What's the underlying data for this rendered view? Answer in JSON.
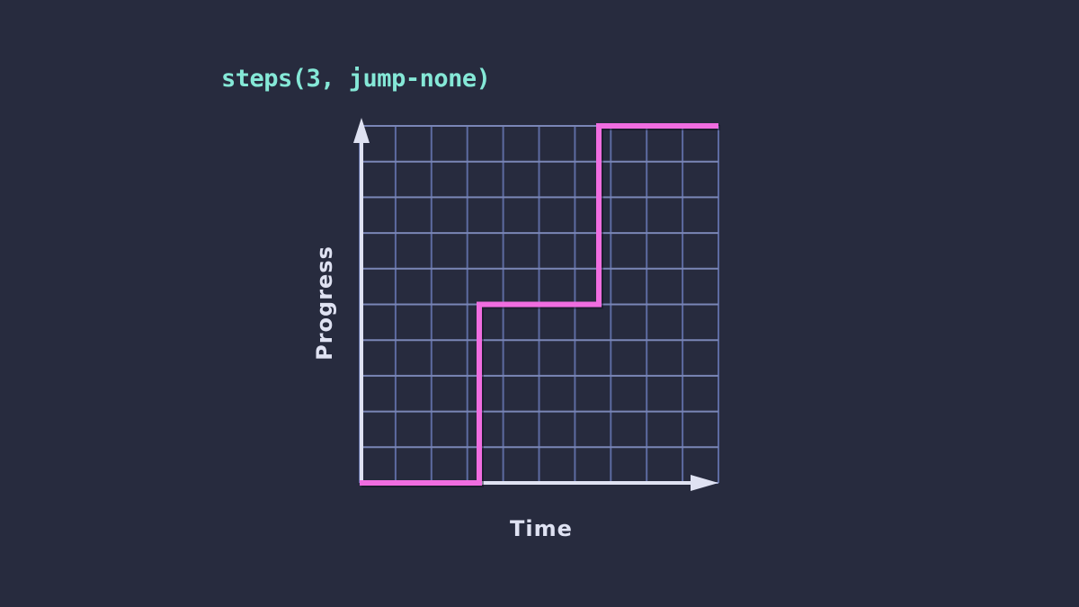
{
  "title": "steps(3, jump-none)",
  "colors": {
    "background": "#272b3e",
    "title": "#85e8d7",
    "axis": "#dfe2f2",
    "label": "#dfe2f2",
    "grid_vertical": "#5d6ba1",
    "grid_horizontal": "#7a86b6",
    "line": "#f06de0"
  },
  "chart_data": {
    "type": "line",
    "subtype": "step",
    "title": "steps(3, jump-none)",
    "easing_function": "steps(3, jump-none)",
    "step_count": 3,
    "jump_term": "jump-none",
    "xlabel": "Time",
    "ylabel": "Progress",
    "xlim": [
      0,
      1
    ],
    "ylim": [
      0,
      1
    ],
    "grid": {
      "columns": 10,
      "rows": 10,
      "visible": true
    },
    "legend": false,
    "series": [
      {
        "name": "steps(3, jump-none)",
        "x": [
          0,
          0.3333,
          0.3333,
          0.6667,
          0.6667,
          1
        ],
        "y": [
          0,
          0,
          0.5,
          0.5,
          1,
          1
        ]
      }
    ],
    "step_values": [
      0,
      0.5,
      1
    ]
  }
}
